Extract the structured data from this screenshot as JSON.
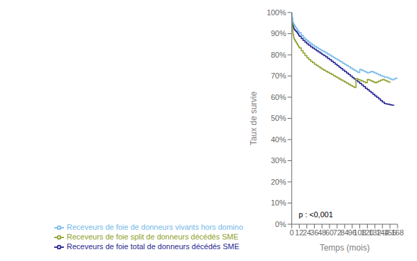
{
  "chart_data": {
    "type": "line",
    "xlabel": "Temps (mois)",
    "ylabel": "Taux de survie",
    "xlim": [
      0,
      168
    ],
    "ylim": [
      0.0,
      1.0
    ],
    "xticks": [
      0,
      12,
      24,
      36,
      48,
      60,
      72,
      84,
      96,
      108,
      120,
      132,
      144,
      156,
      168
    ],
    "yticks": [
      {
        "value": 0.0,
        "label": "0%"
      },
      {
        "value": 0.1,
        "label": "10%"
      },
      {
        "value": 0.2,
        "label": "20%"
      },
      {
        "value": 0.3,
        "label": "30%"
      },
      {
        "value": 0.4,
        "label": "40%"
      },
      {
        "value": 0.5,
        "label": "50%"
      },
      {
        "value": 0.6,
        "label": "60%"
      },
      {
        "value": 0.7,
        "label": "70%"
      },
      {
        "value": 0.8,
        "label": "80%"
      },
      {
        "value": 0.9,
        "label": "90%"
      },
      {
        "value": 1.0,
        "label": "100%"
      }
    ],
    "annotation": "p : <0,001",
    "grid": false,
    "legend": "bottom",
    "line_style": "step",
    "series": [
      {
        "name": "Receveurs de foie total de donneurs décédés SME",
        "color": "#1f1f8f",
        "x": [
          0,
          0.5,
          1,
          1.5,
          2,
          3,
          4,
          5,
          6,
          7,
          8,
          9,
          10,
          11,
          12,
          15,
          18,
          21,
          24,
          27,
          30,
          33,
          36,
          39,
          42,
          45,
          48,
          51,
          54,
          57,
          60,
          63,
          66,
          69,
          72,
          75,
          78,
          81,
          84,
          87,
          90,
          93,
          96,
          99,
          102,
          105,
          108,
          111,
          114,
          117,
          120,
          123,
          126,
          129,
          132,
          135,
          138,
          141,
          144,
          147,
          150,
          153,
          156,
          159,
          162
        ],
        "values": [
          1.0,
          0.975,
          0.955,
          0.945,
          0.935,
          0.925,
          0.92,
          0.916,
          0.913,
          0.91,
          0.907,
          0.902,
          0.898,
          0.893,
          0.888,
          0.877,
          0.868,
          0.86,
          0.852,
          0.845,
          0.838,
          0.832,
          0.826,
          0.82,
          0.814,
          0.808,
          0.802,
          0.796,
          0.79,
          0.783,
          0.777,
          0.77,
          0.763,
          0.756,
          0.749,
          0.742,
          0.735,
          0.728,
          0.721,
          0.714,
          0.707,
          0.7,
          0.693,
          0.686,
          0.679,
          0.672,
          0.665,
          0.657,
          0.65,
          0.642,
          0.635,
          0.628,
          0.621,
          0.613,
          0.606,
          0.599,
          0.592,
          0.584,
          0.577,
          0.57,
          0.568,
          0.566,
          0.564,
          0.562,
          0.56
        ]
      },
      {
        "name": "Receveurs de foie split de donneurs décédés SME",
        "color": "#8c9e2a",
        "x": [
          0,
          0.5,
          1,
          1.5,
          2,
          3,
          4,
          5,
          6,
          7,
          8,
          9,
          10,
          11,
          12,
          15,
          18,
          21,
          24,
          27,
          30,
          33,
          36,
          39,
          42,
          45,
          48,
          51,
          54,
          57,
          60,
          63,
          66,
          69,
          72,
          75,
          78,
          81,
          84,
          87,
          90,
          93,
          96,
          99,
          102,
          105,
          108,
          111,
          114,
          117,
          120,
          123,
          126,
          129,
          132,
          135,
          138,
          141,
          144,
          147,
          150,
          153,
          156
        ],
        "values": [
          1.0,
          0.96,
          0.93,
          0.91,
          0.895,
          0.88,
          0.873,
          0.868,
          0.863,
          0.858,
          0.853,
          0.848,
          0.843,
          0.838,
          0.833,
          0.82,
          0.808,
          0.797,
          0.786,
          0.778,
          0.77,
          0.763,
          0.756,
          0.75,
          0.744,
          0.738,
          0.732,
          0.727,
          0.722,
          0.717,
          0.712,
          0.707,
          0.702,
          0.697,
          0.692,
          0.686,
          0.681,
          0.676,
          0.671,
          0.666,
          0.661,
          0.656,
          0.651,
          0.646,
          0.688,
          0.684,
          0.68,
          0.676,
          0.672,
          0.668,
          0.684,
          0.68,
          0.676,
          0.672,
          0.668,
          0.672,
          0.676,
          0.68,
          0.684,
          0.68,
          0.676,
          0.672,
          0.668
        ]
      },
      {
        "name": "Receveurs de foie de donneurs vivants hors domino",
        "color": "#72b8e8",
        "x": [
          0,
          0.5,
          1,
          1.5,
          2,
          3,
          4,
          5,
          6,
          7,
          8,
          9,
          10,
          11,
          12,
          15,
          18,
          21,
          24,
          27,
          30,
          33,
          36,
          39,
          42,
          45,
          48,
          51,
          54,
          57,
          60,
          63,
          66,
          69,
          72,
          75,
          78,
          81,
          84,
          87,
          90,
          93,
          96,
          99,
          102,
          105,
          108,
          111,
          114,
          117,
          120,
          123,
          126,
          129,
          132,
          135,
          138,
          141,
          144,
          147,
          150,
          153,
          156,
          159,
          162,
          165,
          168
        ],
        "values": [
          1.0,
          0.98,
          0.965,
          0.958,
          0.952,
          0.945,
          0.94,
          0.935,
          0.93,
          0.926,
          0.922,
          0.917,
          0.913,
          0.908,
          0.904,
          0.893,
          0.882,
          0.874,
          0.866,
          0.859,
          0.852,
          0.846,
          0.84,
          0.835,
          0.829,
          0.824,
          0.819,
          0.814,
          0.809,
          0.803,
          0.798,
          0.793,
          0.787,
          0.782,
          0.777,
          0.771,
          0.766,
          0.76,
          0.755,
          0.749,
          0.744,
          0.738,
          0.733,
          0.727,
          0.722,
          0.716,
          0.731,
          0.727,
          0.723,
          0.719,
          0.715,
          0.718,
          0.722,
          0.718,
          0.714,
          0.71,
          0.706,
          0.702,
          0.698,
          0.694,
          0.694,
          0.69,
          0.686,
          0.682,
          0.686,
          0.69,
          0.69
        ]
      }
    ]
  }
}
